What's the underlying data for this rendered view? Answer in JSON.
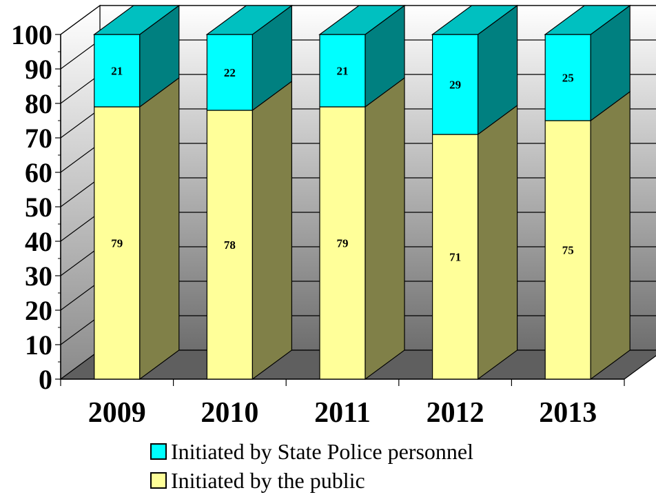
{
  "chart_data": {
    "type": "bar",
    "stacked": true,
    "three_d": true,
    "categories": [
      "2009",
      "2010",
      "2011",
      "2012",
      "2013"
    ],
    "series": [
      {
        "name": "Initiated by the public",
        "values": [
          79,
          78,
          79,
          71,
          75
        ],
        "color": "#FFFF99",
        "side_color": "#808048"
      },
      {
        "name": "Initiated by State Police personnel",
        "values": [
          21,
          22,
          21,
          29,
          25
        ],
        "color": "#00FFFF",
        "side_color": "#008080"
      }
    ],
    "yticks": [
      0,
      10,
      20,
      30,
      40,
      50,
      60,
      70,
      80,
      90,
      100
    ],
    "ylim": [
      0,
      100
    ],
    "grid": true,
    "legend_position": "bottom"
  },
  "legend": {
    "items": [
      {
        "label": "Initiated by State Police personnel",
        "color": "#00FFFF"
      },
      {
        "label": "Initiated by the public",
        "color": "#FFFF99"
      }
    ]
  }
}
